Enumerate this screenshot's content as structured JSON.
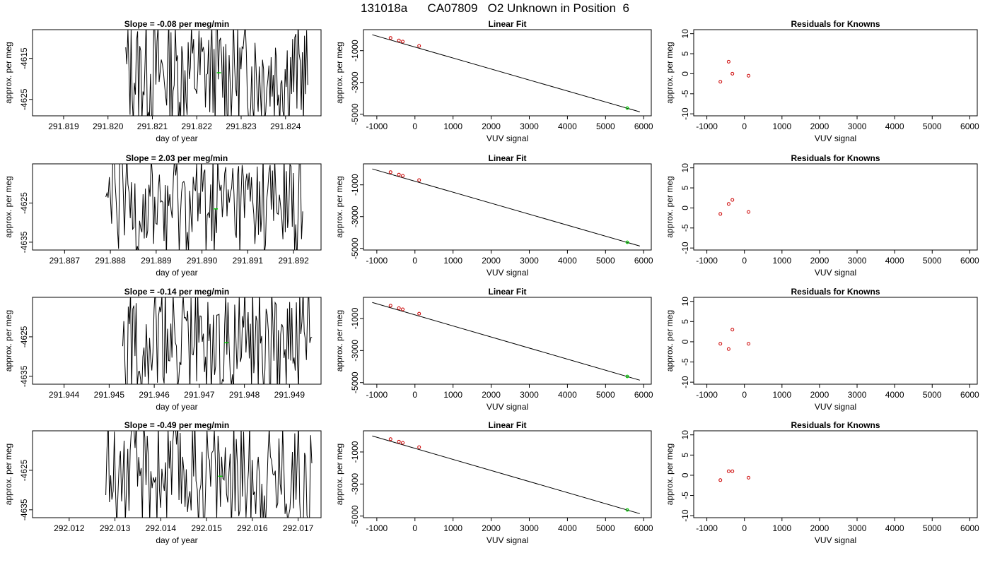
{
  "page_title": "131018a      CA07809   O2 Unknown in Position  6",
  "colors": {
    "series": "#000000",
    "known_point": "#cc0000",
    "unknown_point": "#00cc00"
  },
  "chart_data": [
    {
      "id": "ts-1",
      "type": "line",
      "title": "Slope =  -0.08  per meg/min",
      "xlabel": "day of year",
      "ylabel": "approx. per meg",
      "xlim": [
        291.8183,
        291.8248
      ],
      "ylim": [
        -4629,
        -4608
      ],
      "xticks": [
        291.819,
        291.82,
        291.821,
        291.822,
        291.823,
        291.824
      ],
      "yticks": [
        -4615,
        -4625
      ],
      "xtick_labels": [
        "291.819",
        "291.820",
        "291.821",
        "291.822",
        "291.823",
        "291.824"
      ],
      "ytick_labels": [
        "-4615",
        "-4625"
      ],
      "trace_x_range": [
        291.8204,
        291.8245
      ],
      "highlight": {
        "x": 291.8225,
        "y": -4618.5
      }
    },
    {
      "id": "fit-1",
      "type": "scatter",
      "title": "Linear Fit",
      "xlabel": "VUV signal",
      "ylabel": "approx. per meg",
      "xlim": [
        -1350,
        6200
      ],
      "ylim": [
        -5100,
        320
      ],
      "xticks": [
        -1000,
        0,
        1000,
        2000,
        3000,
        4000,
        5000,
        6000
      ],
      "yticks": [
        -1000,
        -3000,
        -5000
      ],
      "xtick_labels": [
        "-1000",
        "0",
        "1000",
        "2000",
        "3000",
        "4000",
        "5000",
        "6000"
      ],
      "ytick_labels": [
        "-1000",
        "-3000",
        "-5000"
      ],
      "fit_line": {
        "x": [
          -1120,
          5900
        ],
        "y": [
          0,
          -4850
        ]
      },
      "knowns": {
        "x": [
          -640,
          -420,
          -320,
          110
        ],
        "y": [
          -200,
          -355,
          -430,
          -700
        ]
      },
      "unknown": {
        "x": 5570,
        "y": -4615
      }
    },
    {
      "id": "res-1",
      "type": "scatter",
      "title": "Residuals for Knowns",
      "xlabel": "VUV signal",
      "ylabel": "approx. per meg",
      "xlim": [
        -1350,
        6200
      ],
      "ylim": [
        -10.5,
        11
      ],
      "xticks": [
        -1000,
        0,
        1000,
        2000,
        3000,
        4000,
        5000,
        6000
      ],
      "yticks": [
        10,
        5,
        0,
        -5,
        -10
      ],
      "xtick_labels": [
        "-1000",
        "0",
        "1000",
        "2000",
        "3000",
        "4000",
        "5000",
        "6000"
      ],
      "ytick_labels": [
        "10",
        "5",
        "0",
        "-5",
        "-10"
      ],
      "residuals": {
        "x": [
          -640,
          -420,
          -320,
          110
        ],
        "y": [
          -2,
          3,
          0,
          -0.5
        ]
      }
    },
    {
      "id": "ts-2",
      "type": "line",
      "title": "Slope =  2.03  per meg/min",
      "xlabel": "day of year",
      "ylabel": "approx. per meg",
      "xlim": [
        291.8863,
        291.8926
      ],
      "ylim": [
        -4637,
        -4615
      ],
      "xticks": [
        291.887,
        291.888,
        291.889,
        291.89,
        291.891,
        291.892
      ],
      "yticks": [
        -4625,
        -4635
      ],
      "xtick_labels": [
        "291.887",
        "291.888",
        "291.889",
        "291.890",
        "291.891",
        "291.892"
      ],
      "ytick_labels": [
        "-4625",
        "-4635"
      ],
      "trace_x_range": [
        291.8879,
        291.8922
      ],
      "highlight": {
        "x": 291.8903,
        "y": -4626.5
      }
    },
    {
      "id": "fit-2",
      "type": "scatter",
      "title": "Linear Fit",
      "xlabel": "VUV signal",
      "ylabel": "approx. per meg",
      "xlim": [
        -1350,
        6200
      ],
      "ylim": [
        -5100,
        320
      ],
      "xticks": [
        -1000,
        0,
        1000,
        2000,
        3000,
        4000,
        5000,
        6000
      ],
      "yticks": [
        -1000,
        -3000,
        -5000
      ],
      "xtick_labels": [
        "-1000",
        "0",
        "1000",
        "2000",
        "3000",
        "4000",
        "5000",
        "6000"
      ],
      "ytick_labels": [
        "-1000",
        "-3000",
        "-5000"
      ],
      "fit_line": {
        "x": [
          -1120,
          5900
        ],
        "y": [
          0,
          -4850
        ]
      },
      "knowns": {
        "x": [
          -640,
          -420,
          -320,
          110
        ],
        "y": [
          -200,
          -355,
          -430,
          -700
        ]
      },
      "unknown": {
        "x": 5570,
        "y": -4615
      }
    },
    {
      "id": "res-2",
      "type": "scatter",
      "title": "Residuals for Knowns",
      "xlabel": "VUV signal",
      "ylabel": "approx. per meg",
      "xlim": [
        -1350,
        6200
      ],
      "ylim": [
        -10.5,
        11
      ],
      "xticks": [
        -1000,
        0,
        1000,
        2000,
        3000,
        4000,
        5000,
        6000
      ],
      "yticks": [
        10,
        5,
        0,
        -5,
        -10
      ],
      "xtick_labels": [
        "-1000",
        "0",
        "1000",
        "2000",
        "3000",
        "4000",
        "5000",
        "6000"
      ],
      "ytick_labels": [
        "10",
        "5",
        "0",
        "-5",
        "-10"
      ],
      "residuals": {
        "x": [
          -640,
          -420,
          -320,
          110
        ],
        "y": [
          -1.5,
          1,
          2,
          -1
        ]
      }
    },
    {
      "id": "ts-3",
      "type": "line",
      "title": "Slope =  -0.14  per meg/min",
      "xlabel": "day of year",
      "ylabel": "approx. per meg",
      "xlim": [
        291.9433,
        291.9497
      ],
      "ylim": [
        -4637,
        -4615
      ],
      "xticks": [
        291.944,
        291.945,
        291.946,
        291.947,
        291.948,
        291.949
      ],
      "yticks": [
        -4625,
        -4635
      ],
      "xtick_labels": [
        "291.944",
        "291.945",
        "291.946",
        "291.947",
        "291.948",
        "291.949"
      ],
      "ytick_labels": [
        "-4625",
        "-4635"
      ],
      "trace_x_range": [
        291.9453,
        291.9495
      ],
      "highlight": {
        "x": 291.9476,
        "y": -4626.5
      }
    },
    {
      "id": "fit-3",
      "type": "scatter",
      "title": "Linear Fit",
      "xlabel": "VUV signal",
      "ylabel": "approx. per meg",
      "xlim": [
        -1350,
        6200
      ],
      "ylim": [
        -5100,
        320
      ],
      "xticks": [
        -1000,
        0,
        1000,
        2000,
        3000,
        4000,
        5000,
        6000
      ],
      "yticks": [
        -1000,
        -3000,
        -5000
      ],
      "xtick_labels": [
        "-1000",
        "0",
        "1000",
        "2000",
        "3000",
        "4000",
        "5000",
        "6000"
      ],
      "ytick_labels": [
        "-1000",
        "-3000",
        "-5000"
      ],
      "fit_line": {
        "x": [
          -1120,
          5900
        ],
        "y": [
          0,
          -4850
        ]
      },
      "knowns": {
        "x": [
          -640,
          -420,
          -320,
          110
        ],
        "y": [
          -200,
          -355,
          -430,
          -700
        ]
      },
      "unknown": {
        "x": 5570,
        "y": -4615
      }
    },
    {
      "id": "res-3",
      "type": "scatter",
      "title": "Residuals for Knowns",
      "xlabel": "VUV signal",
      "ylabel": "approx. per meg",
      "xlim": [
        -1350,
        6200
      ],
      "ylim": [
        -10.5,
        11
      ],
      "xticks": [
        -1000,
        0,
        1000,
        2000,
        3000,
        4000,
        5000,
        6000
      ],
      "yticks": [
        10,
        5,
        0,
        -5,
        -10
      ],
      "xtick_labels": [
        "-1000",
        "0",
        "1000",
        "2000",
        "3000",
        "4000",
        "5000",
        "6000"
      ],
      "ytick_labels": [
        "10",
        "5",
        "0",
        "-5",
        "-10"
      ],
      "residuals": {
        "x": [
          -640,
          -420,
          -320,
          110
        ],
        "y": [
          -0.5,
          -1.8,
          3,
          -0.5
        ]
      }
    },
    {
      "id": "ts-4",
      "type": "line",
      "title": "Slope =  -0.49  per meg/min",
      "xlabel": "day of year",
      "ylabel": "approx. per meg",
      "xlim": [
        292.0112,
        292.0175
      ],
      "ylim": [
        -4637,
        -4615
      ],
      "xticks": [
        292.012,
        292.013,
        292.014,
        292.015,
        292.016,
        292.017
      ],
      "yticks": [
        -4625,
        -4635
      ],
      "xtick_labels": [
        "292.012",
        "292.013",
        "292.014",
        "292.015",
        "292.016",
        "292.017"
      ],
      "ytick_labels": [
        "-4625",
        "-4635"
      ],
      "trace_x_range": [
        292.0128,
        292.0173
      ],
      "highlight": {
        "x": 292.0153,
        "y": -4626.5
      }
    },
    {
      "id": "fit-4",
      "type": "scatter",
      "title": "Linear Fit",
      "xlabel": "VUV signal",
      "ylabel": "approx. per meg",
      "xlim": [
        -1350,
        6200
      ],
      "ylim": [
        -5100,
        320
      ],
      "xticks": [
        -1000,
        0,
        1000,
        2000,
        3000,
        4000,
        5000,
        6000
      ],
      "yticks": [
        -1000,
        -3000,
        -5000
      ],
      "xtick_labels": [
        "-1000",
        "0",
        "1000",
        "2000",
        "3000",
        "4000",
        "5000",
        "6000"
      ],
      "ytick_labels": [
        "-1000",
        "-3000",
        "-5000"
      ],
      "fit_line": {
        "x": [
          -1120,
          5900
        ],
        "y": [
          0,
          -4850
        ]
      },
      "knowns": {
        "x": [
          -640,
          -420,
          -320,
          110
        ],
        "y": [
          -200,
          -355,
          -430,
          -700
        ]
      },
      "unknown": {
        "x": 5570,
        "y": -4615
      }
    },
    {
      "id": "res-4",
      "type": "scatter",
      "title": "Residuals for Knowns",
      "xlabel": "VUV signal",
      "ylabel": "approx. per meg",
      "xlim": [
        -1350,
        6200
      ],
      "ylim": [
        -10.5,
        11
      ],
      "xticks": [
        -1000,
        0,
        1000,
        2000,
        3000,
        4000,
        5000,
        6000
      ],
      "yticks": [
        10,
        5,
        0,
        -5,
        -10
      ],
      "xtick_labels": [
        "-1000",
        "0",
        "1000",
        "2000",
        "3000",
        "4000",
        "5000",
        "6000"
      ],
      "ytick_labels": [
        "10",
        "5",
        "0",
        "-5",
        "-10"
      ],
      "residuals": {
        "x": [
          -640,
          -420,
          -320,
          110
        ],
        "y": [
          -1.2,
          1,
          1,
          -0.6
        ]
      }
    }
  ]
}
